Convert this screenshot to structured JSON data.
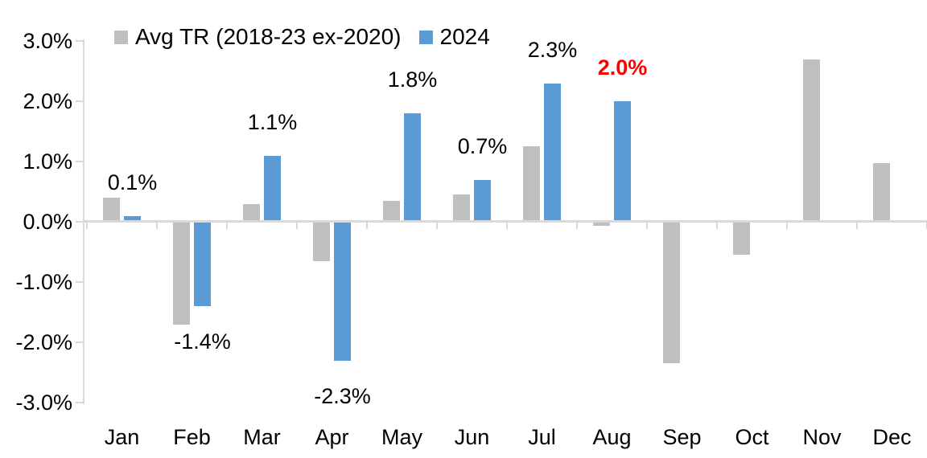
{
  "chart_data": {
    "type": "bar",
    "title": "",
    "categories": [
      "Jan",
      "Feb",
      "Mar",
      "Apr",
      "May",
      "Jun",
      "Jul",
      "Aug",
      "Sep",
      "Oct",
      "Nov",
      "Dec"
    ],
    "series": [
      {
        "name": "Avg TR (2018-23 ex-2020)",
        "color": "#BFBFBF",
        "values": [
          0.4,
          -1.7,
          0.3,
          -0.65,
          0.35,
          0.45,
          1.25,
          -0.06,
          -2.35,
          -0.55,
          2.7,
          0.97
        ]
      },
      {
        "name": "2024",
        "color": "#5B9BD5",
        "values": [
          0.1,
          -1.4,
          1.1,
          -2.3,
          1.8,
          0.7,
          2.3,
          2.0,
          null,
          null,
          null,
          null
        ]
      }
    ],
    "data_labels": [
      {
        "category": "Jan",
        "text": "0.1%",
        "color": "#000000",
        "bold": false
      },
      {
        "category": "Feb",
        "text": "-1.4%",
        "color": "#000000",
        "bold": false
      },
      {
        "category": "Mar",
        "text": "1.1%",
        "color": "#000000",
        "bold": false
      },
      {
        "category": "Apr",
        "text": "-2.3%",
        "color": "#000000",
        "bold": false
      },
      {
        "category": "May",
        "text": "1.8%",
        "color": "#000000",
        "bold": false
      },
      {
        "category": "Jun",
        "text": "0.7%",
        "color": "#000000",
        "bold": false
      },
      {
        "category": "Jul",
        "text": "2.3%",
        "color": "#000000",
        "bold": false
      },
      {
        "category": "Aug",
        "text": "2.0%",
        "color": "#FF0000",
        "bold": true
      }
    ],
    "y_axis": {
      "min": -3.0,
      "max": 3.0,
      "tick_step": 1.0,
      "unit": "%",
      "tick_labels": [
        "3.0%",
        "2.0%",
        "1.0%",
        "0.0%",
        "-1.0%",
        "-2.0%",
        "-3.0%"
      ]
    },
    "legend": {
      "position": "top",
      "entries": [
        "Avg TR (2018-23 ex-2020)",
        "2024"
      ]
    },
    "grid": false,
    "axis_color": "#D9D9D9",
    "text_color": "#000000",
    "background": "#FFFFFF"
  }
}
